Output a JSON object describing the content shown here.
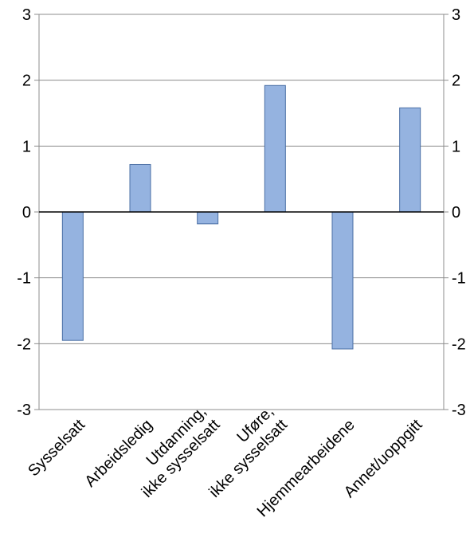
{
  "chart_data": {
    "type": "bar",
    "categories": [
      [
        "Sysselsatt"
      ],
      [
        "Arbeidsledig"
      ],
      [
        "Utdanning,",
        "ikke sysselsatt"
      ],
      [
        "Uføre,",
        "ikke sysselsatt"
      ],
      [
        "Hjemmearbeidene"
      ],
      [
        "Annet/uoppgitt"
      ]
    ],
    "values": [
      -1.95,
      0.72,
      -0.18,
      1.92,
      -2.08,
      1.58
    ],
    "ylim": [
      -3,
      3
    ],
    "yticks": [
      "-3",
      "-2",
      "-1",
      "0",
      "1",
      "2",
      "3"
    ],
    "grid": true,
    "bar_color": "#95B3E0",
    "bar_stroke": "#4A6FA5"
  }
}
